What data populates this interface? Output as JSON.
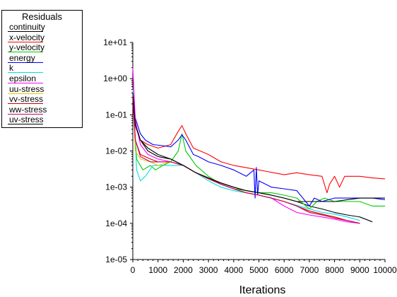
{
  "chart_data": {
    "type": "line",
    "xlabel": "Iterations",
    "ylabel": "",
    "log_y": true,
    "xlim": [
      0,
      10000
    ],
    "ylim": [
      1e-05,
      10
    ],
    "xticks": [
      "0",
      "1000",
      "2000",
      "3000",
      "4000",
      "5000",
      "6000",
      "7000",
      "8000",
      "9000",
      "10000"
    ],
    "yticks": [
      "1e-05",
      "1e-04",
      "1e-03",
      "1e-02",
      "1e-01",
      "1e+00",
      "1e+01"
    ],
    "grid": false,
    "legend": {
      "title": "Residuals",
      "placement": "top-left"
    },
    "series": [
      {
        "name": "continuity",
        "color": "#000000",
        "points": [
          [
            0,
            0.3
          ],
          [
            100,
            0.06
          ],
          [
            300,
            0.02
          ],
          [
            600,
            0.01
          ],
          [
            1000,
            0.007
          ],
          [
            1500,
            0.006
          ],
          [
            2000,
            0.004
          ],
          [
            2500,
            0.0025
          ],
          [
            3000,
            0.0018
          ],
          [
            3500,
            0.0013
          ],
          [
            4000,
            0.001
          ],
          [
            4500,
            0.0008
          ],
          [
            5000,
            0.0007
          ],
          [
            5500,
            0.0006
          ],
          [
            6000,
            0.0005
          ],
          [
            6500,
            0.0004
          ],
          [
            7000,
            0.0003
          ],
          [
            7500,
            0.00025
          ],
          [
            8000,
            0.0002
          ],
          [
            8500,
            0.00017
          ],
          [
            9000,
            0.00015
          ],
          [
            9500,
            0.00011
          ]
        ]
      },
      {
        "name": "x-velocity",
        "color": "#ff0000",
        "points": [
          [
            0,
            0.5
          ],
          [
            100,
            0.05
          ],
          [
            300,
            0.02
          ],
          [
            600,
            0.015
          ],
          [
            1000,
            0.012
          ],
          [
            1500,
            0.015
          ],
          [
            1800,
            0.035
          ],
          [
            1950,
            0.05
          ],
          [
            2100,
            0.03
          ],
          [
            2400,
            0.012
          ],
          [
            3000,
            0.008
          ],
          [
            3500,
            0.005
          ],
          [
            4000,
            0.004
          ],
          [
            5000,
            0.003
          ],
          [
            6000,
            0.0022
          ],
          [
            6500,
            0.0025
          ],
          [
            7000,
            0.0022
          ],
          [
            7500,
            0.002
          ],
          [
            7700,
            0.0007
          ],
          [
            7800,
            0.0012
          ],
          [
            8000,
            0.002
          ],
          [
            8200,
            0.001
          ],
          [
            8400,
            0.002
          ],
          [
            9000,
            0.002
          ],
          [
            9500,
            0.0018
          ],
          [
            10000,
            0.0017
          ]
        ]
      },
      {
        "name": "y-velocity",
        "color": "#00cc00",
        "points": [
          [
            0,
            0.3
          ],
          [
            150,
            0.006
          ],
          [
            400,
            0.003
          ],
          [
            700,
            0.004
          ],
          [
            900,
            0.003
          ],
          [
            1200,
            0.004
          ],
          [
            1500,
            0.005
          ],
          [
            1800,
            0.01
          ],
          [
            1950,
            0.03
          ],
          [
            2100,
            0.01
          ],
          [
            2500,
            0.004
          ],
          [
            3000,
            0.002
          ],
          [
            3500,
            0.0012
          ],
          [
            4000,
            0.0009
          ],
          [
            4500,
            0.0008
          ],
          [
            5000,
            0.0007
          ],
          [
            5500,
            0.0007
          ],
          [
            6000,
            0.0006
          ],
          [
            6500,
            0.0005
          ],
          [
            7000,
            0.00025
          ],
          [
            7300,
            0.0004
          ],
          [
            7600,
            0.0005
          ],
          [
            8000,
            0.0004
          ],
          [
            8500,
            0.0004
          ],
          [
            9000,
            0.0004
          ],
          [
            9500,
            0.0003
          ],
          [
            10000,
            0.0003
          ]
        ]
      },
      {
        "name": "energy",
        "color": "#0000ff",
        "points": [
          [
            0,
            0.4
          ],
          [
            100,
            0.08
          ],
          [
            300,
            0.03
          ],
          [
            500,
            0.02
          ],
          [
            800,
            0.015
          ],
          [
            1200,
            0.014
          ],
          [
            1500,
            0.013
          ],
          [
            1800,
            0.02
          ],
          [
            1950,
            0.028
          ],
          [
            2100,
            0.02
          ],
          [
            2400,
            0.008
          ],
          [
            2600,
            0.007
          ],
          [
            3000,
            0.005
          ],
          [
            3500,
            0.004
          ],
          [
            4000,
            0.003
          ],
          [
            4500,
            0.002
          ],
          [
            4800,
            0.003
          ],
          [
            4850,
            0.0005
          ],
          [
            4900,
            0.0035
          ],
          [
            4950,
            0.0006
          ],
          [
            5000,
            0.0015
          ],
          [
            5500,
            0.001
          ],
          [
            6000,
            0.0009
          ],
          [
            6500,
            0.0008
          ],
          [
            7000,
            0.0003
          ],
          [
            7200,
            0.0005
          ],
          [
            7500,
            0.0004
          ],
          [
            8000,
            0.0005
          ],
          [
            8500,
            0.0005
          ],
          [
            9000,
            0.0005
          ],
          [
            9500,
            0.0005
          ],
          [
            10000,
            0.00045
          ]
        ]
      },
      {
        "name": "k",
        "color": "#00e0e0",
        "points": [
          [
            0,
            0.5
          ],
          [
            150,
            0.003
          ],
          [
            300,
            0.0015
          ],
          [
            500,
            0.002
          ],
          [
            800,
            0.004
          ],
          [
            1200,
            0.004
          ],
          [
            1600,
            0.004
          ],
          [
            2000,
            0.004
          ],
          [
            2500,
            0.0025
          ],
          [
            3000,
            0.0015
          ],
          [
            3500,
            0.001
          ],
          [
            4000,
            0.0008
          ],
          [
            5000,
            0.0006
          ],
          [
            6000,
            0.0004
          ],
          [
            7000,
            0.00025
          ],
          [
            7500,
            0.0002
          ],
          [
            8000,
            0.00018
          ],
          [
            8500,
            0.00015
          ],
          [
            9000,
            0.00012
          ]
        ]
      },
      {
        "name": "epsilon",
        "color": "#ff00ff",
        "points": [
          [
            0,
            2
          ],
          [
            100,
            0.07
          ],
          [
            300,
            0.015
          ],
          [
            600,
            0.008
          ],
          [
            1000,
            0.006
          ],
          [
            1500,
            0.005
          ],
          [
            2000,
            0.004
          ],
          [
            2500,
            0.0025
          ],
          [
            3000,
            0.0017
          ],
          [
            3500,
            0.0012
          ],
          [
            4000,
            0.0009
          ],
          [
            4500,
            0.0007
          ],
          [
            5000,
            0.0006
          ],
          [
            5500,
            0.0005
          ],
          [
            6000,
            0.0003
          ],
          [
            6500,
            0.0002
          ],
          [
            7000,
            0.00017
          ],
          [
            7500,
            0.00015
          ],
          [
            8000,
            0.00013
          ],
          [
            8500,
            0.00011
          ],
          [
            9000,
            0.0001
          ]
        ]
      },
      {
        "name": "uu-stress",
        "color": "#e6c800",
        "points": [
          [
            0,
            0.4
          ],
          [
            100,
            0.01
          ],
          [
            300,
            0.006
          ],
          [
            700,
            0.005
          ],
          [
            1000,
            0.004
          ],
          [
            1500,
            0.005
          ],
          [
            2000,
            0.004
          ],
          [
            2500,
            0.0025
          ],
          [
            3000,
            0.0017
          ],
          [
            3500,
            0.0012
          ],
          [
            4000,
            0.0009
          ],
          [
            4500,
            0.0007
          ],
          [
            5000,
            0.0006
          ],
          [
            5500,
            0.0005
          ],
          [
            6000,
            0.0004
          ],
          [
            6500,
            0.0003
          ],
          [
            7000,
            0.0002
          ],
          [
            7500,
            0.00017
          ],
          [
            8000,
            0.00014
          ],
          [
            8500,
            0.00012
          ],
          [
            9000,
            0.0001
          ]
        ]
      },
      {
        "name": "vv-stress",
        "color": "#cc0000",
        "points": [
          [
            0,
            0.3
          ],
          [
            100,
            0.02
          ],
          [
            300,
            0.008
          ],
          [
            700,
            0.006
          ],
          [
            1000,
            0.005
          ],
          [
            1500,
            0.005
          ],
          [
            2000,
            0.004
          ],
          [
            2500,
            0.0025
          ],
          [
            3000,
            0.0018
          ],
          [
            3500,
            0.0012
          ],
          [
            4000,
            0.0009
          ],
          [
            4500,
            0.0007
          ],
          [
            5000,
            0.0006
          ],
          [
            5500,
            0.0005
          ],
          [
            6000,
            0.0004
          ],
          [
            6500,
            0.0003
          ],
          [
            7000,
            0.00022
          ],
          [
            7500,
            0.00018
          ],
          [
            8000,
            0.00015
          ],
          [
            8500,
            0.00012
          ],
          [
            9000,
            0.0001
          ]
        ]
      },
      {
        "name": "ww-stress",
        "color": "#cc0066",
        "points": [
          [
            0,
            0.3
          ],
          [
            100,
            0.02
          ],
          [
            300,
            0.007
          ],
          [
            700,
            0.005
          ],
          [
            1000,
            0.005
          ],
          [
            1500,
            0.005
          ],
          [
            2000,
            0.004
          ],
          [
            2500,
            0.0025
          ],
          [
            3000,
            0.0017
          ],
          [
            3500,
            0.0012
          ],
          [
            4000,
            0.0009
          ],
          [
            4500,
            0.0007
          ],
          [
            5000,
            0.0006
          ],
          [
            5500,
            0.0005
          ],
          [
            6000,
            0.0004
          ],
          [
            6500,
            0.0003
          ],
          [
            7000,
            0.0002
          ],
          [
            7500,
            0.00017
          ],
          [
            8000,
            0.00014
          ],
          [
            8500,
            0.00012
          ],
          [
            9000,
            0.0001
          ]
        ]
      },
      {
        "name": "uv-stress",
        "color": "#000000",
        "points": [
          [
            0,
            0.4
          ],
          [
            100,
            0.05
          ],
          [
            300,
            0.02
          ],
          [
            600,
            0.012
          ],
          [
            1000,
            0.008
          ],
          [
            1500,
            0.006
          ],
          [
            2000,
            0.004
          ],
          [
            2500,
            0.0025
          ],
          [
            3000,
            0.0018
          ],
          [
            3500,
            0.0013
          ],
          [
            4000,
            0.001
          ],
          [
            4500,
            0.0008
          ],
          [
            5000,
            0.0007
          ],
          [
            5500,
            0.0006
          ],
          [
            6000,
            0.0005
          ],
          [
            6500,
            0.0004
          ],
          [
            7000,
            0.0004
          ],
          [
            7500,
            0.0004
          ],
          [
            8000,
            0.0004
          ],
          [
            8500,
            0.00045
          ],
          [
            9000,
            0.0005
          ],
          [
            9500,
            0.0005
          ],
          [
            10000,
            0.0005
          ]
        ]
      }
    ]
  }
}
